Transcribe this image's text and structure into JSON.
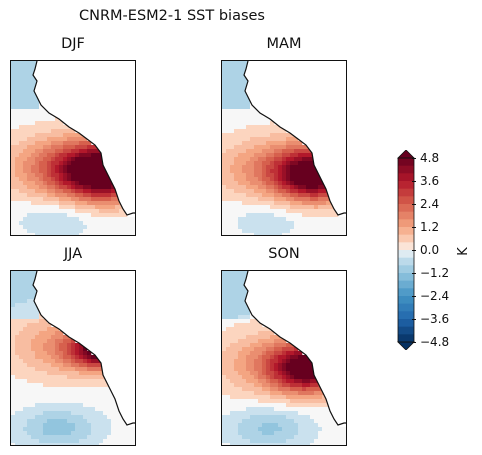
{
  "chart_data": {
    "type": "heatmap",
    "title": "CNRM-ESM2-1 SST biases",
    "panels": [
      {
        "name": "DJF",
        "peak_bias": 4.8,
        "pattern": "strong warm bias along coast, broad warm plume offshore"
      },
      {
        "name": "MAM",
        "peak_bias": 4.6,
        "pattern": "warm bias along coast, weaker offshore"
      },
      {
        "name": "JJA",
        "peak_bias": 4.8,
        "pattern": "warm band along coast, cool bias to southwest"
      },
      {
        "name": "SON",
        "peak_bias": 4.2,
        "pattern": "warm plume near coast, cool bias in south"
      }
    ],
    "colorbar": {
      "label": "K",
      "ticks": [
        "4.8",
        "3.6",
        "2.4",
        "1.2",
        "0.0",
        "−1.2",
        "−2.4",
        "−3.6",
        "−4.8"
      ],
      "range": [
        -4.8,
        4.8
      ],
      "extend": "both",
      "colormap": "RdBu_r"
    }
  }
}
